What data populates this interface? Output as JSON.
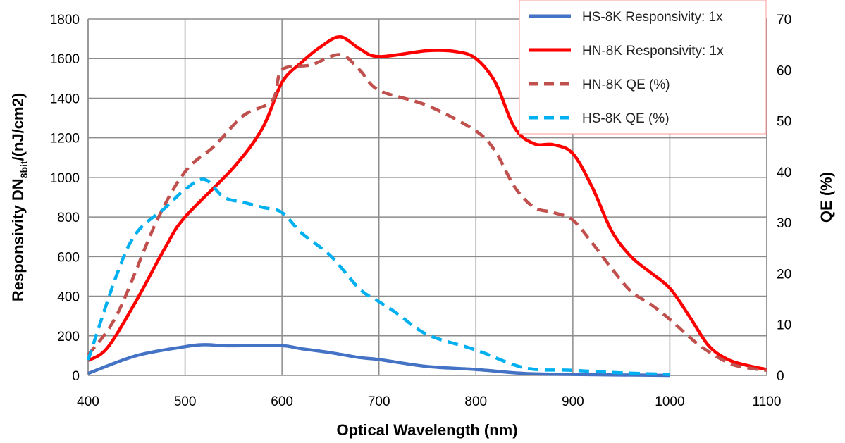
{
  "chart_data": {
    "type": "line",
    "x_label": "Optical Wavelength (nm)",
    "y_left_label": {
      "main": "Responsivity DN",
      "sub": "8bit",
      "rest": "/(nJ/cm2)"
    },
    "y_right_label": "QE (%)",
    "x_ticks": [
      400,
      500,
      600,
      700,
      800,
      900,
      1000,
      1100
    ],
    "y_left_ticks": [
      0,
      200,
      400,
      600,
      800,
      1000,
      1200,
      1400,
      1600,
      1800
    ],
    "y_right_ticks": [
      0,
      10,
      20,
      30,
      40,
      50,
      60,
      70
    ],
    "x_range": [
      400,
      1100
    ],
    "y_left_range": [
      0,
      1800
    ],
    "y_right_range": [
      0,
      70
    ],
    "grid": true,
    "legend_position": "top-right",
    "series": [
      {
        "name": "HS-8K Responsivity: 1x",
        "axis": "left",
        "color": "#4472c4",
        "dash": "solid",
        "points": [
          [
            400,
            10
          ],
          [
            450,
            100
          ],
          [
            500,
            145
          ],
          [
            520,
            155
          ],
          [
            540,
            150
          ],
          [
            560,
            150
          ],
          [
            600,
            150
          ],
          [
            620,
            135
          ],
          [
            650,
            115
          ],
          [
            680,
            90
          ],
          [
            700,
            80
          ],
          [
            750,
            45
          ],
          [
            800,
            30
          ],
          [
            850,
            10
          ],
          [
            900,
            5
          ],
          [
            1000,
            0
          ]
        ]
      },
      {
        "name": "HN-8K Responsivity: 1x",
        "axis": "left",
        "color": "#ff0000",
        "dash": "solid",
        "points": [
          [
            400,
            75
          ],
          [
            420,
            140
          ],
          [
            450,
            380
          ],
          [
            480,
            650
          ],
          [
            500,
            800
          ],
          [
            550,
            1050
          ],
          [
            580,
            1250
          ],
          [
            600,
            1480
          ],
          [
            620,
            1580
          ],
          [
            640,
            1660
          ],
          [
            660,
            1710
          ],
          [
            680,
            1650
          ],
          [
            700,
            1610
          ],
          [
            750,
            1640
          ],
          [
            780,
            1635
          ],
          [
            800,
            1600
          ],
          [
            820,
            1480
          ],
          [
            840,
            1250
          ],
          [
            860,
            1170
          ],
          [
            880,
            1165
          ],
          [
            900,
            1120
          ],
          [
            920,
            950
          ],
          [
            940,
            730
          ],
          [
            960,
            600
          ],
          [
            980,
            520
          ],
          [
            1000,
            440
          ],
          [
            1020,
            300
          ],
          [
            1040,
            150
          ],
          [
            1060,
            80
          ],
          [
            1080,
            50
          ],
          [
            1100,
            30
          ]
        ]
      },
      {
        "name": "HN-8K QE (%)",
        "axis": "right",
        "color": "#c0504d",
        "dash": "dashed",
        "points": [
          [
            400,
            4
          ],
          [
            430,
            12
          ],
          [
            470,
            30
          ],
          [
            500,
            40
          ],
          [
            530,
            45
          ],
          [
            560,
            51
          ],
          [
            590,
            54
          ],
          [
            600,
            60
          ],
          [
            630,
            61
          ],
          [
            660,
            63
          ],
          [
            680,
            60
          ],
          [
            700,
            56
          ],
          [
            750,
            53
          ],
          [
            800,
            48
          ],
          [
            820,
            44
          ],
          [
            840,
            37
          ],
          [
            860,
            33
          ],
          [
            880,
            32
          ],
          [
            900,
            30.5
          ],
          [
            920,
            26
          ],
          [
            940,
            21
          ],
          [
            960,
            16.5
          ],
          [
            980,
            14
          ],
          [
            1000,
            11
          ],
          [
            1030,
            6
          ],
          [
            1060,
            2.5
          ],
          [
            1080,
            1.5
          ],
          [
            1100,
            1
          ]
        ]
      },
      {
        "name": "HS-8K QE (%)",
        "axis": "right",
        "color": "#00b0f0",
        "dash": "dashed",
        "points": [
          [
            400,
            3
          ],
          [
            430,
            20
          ],
          [
            450,
            28
          ],
          [
            480,
            33
          ],
          [
            500,
            36.5
          ],
          [
            520,
            38.5
          ],
          [
            540,
            35
          ],
          [
            560,
            34
          ],
          [
            580,
            33
          ],
          [
            600,
            32
          ],
          [
            620,
            28
          ],
          [
            650,
            23.5
          ],
          [
            680,
            17
          ],
          [
            700,
            14.5
          ],
          [
            720,
            12
          ],
          [
            750,
            8
          ],
          [
            800,
            5
          ],
          [
            850,
            1.5
          ],
          [
            900,
            1
          ],
          [
            950,
            0.5
          ],
          [
            1000,
            0.2
          ]
        ]
      }
    ]
  }
}
